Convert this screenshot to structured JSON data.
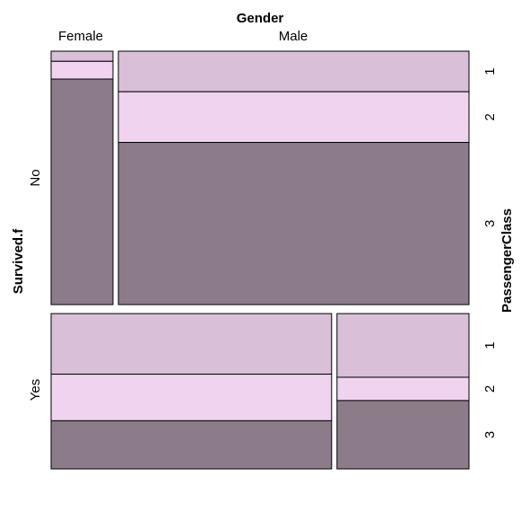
{
  "chart_data": {
    "type": "mosaic",
    "x_variable": "Gender",
    "y_variable": "Survived.f",
    "z_variable": "PassengerClass",
    "gender_levels": [
      "Female",
      "Male"
    ],
    "survived_levels": [
      "No",
      "Yes"
    ],
    "class_levels": [
      "1",
      "2",
      "3"
    ],
    "colors": {
      "1": "#d9bfd7",
      "2": "#f0d3ee",
      "3": "#8c7b89"
    },
    "cells": [
      {
        "survived": "No",
        "gender": "Female",
        "class_shares": [
          0.04,
          0.07,
          0.89
        ]
      },
      {
        "survived": "No",
        "gender": "Male",
        "class_shares": [
          0.16,
          0.2,
          0.64
        ]
      },
      {
        "survived": "Yes",
        "gender": "Female",
        "class_shares": [
          0.39,
          0.3,
          0.31
        ]
      },
      {
        "survived": "Yes",
        "gender": "Male",
        "class_shares": [
          0.41,
          0.15,
          0.44
        ]
      }
    ],
    "survived_shares": [
      0.62,
      0.38
    ],
    "gender_shares_within_survived": {
      "No": [
        0.15,
        0.85
      ],
      "Yes": [
        0.68,
        0.32
      ]
    }
  }
}
